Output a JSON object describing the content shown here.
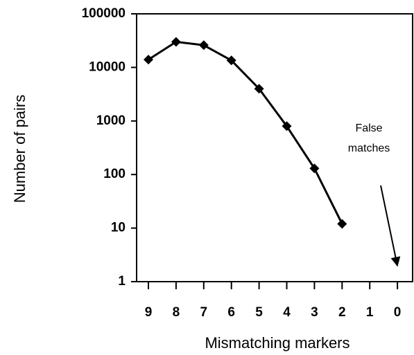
{
  "chart_data": {
    "type": "line",
    "x_label": "Mismatching markers",
    "y_label": "Number of pairs",
    "categories": [
      "9",
      "8",
      "7",
      "6",
      "5",
      "4",
      "3",
      "2",
      "1",
      "0"
    ],
    "series": [
      {
        "name": "pairs",
        "color": "#000000",
        "values": [
          14000,
          30000,
          26000,
          13500,
          4000,
          800,
          130,
          12,
          null,
          null
        ]
      }
    ],
    "ylim": [
      1,
      100000
    ],
    "yticks": [
      1,
      10,
      100,
      1000,
      10000,
      100000
    ],
    "log_y": true,
    "grid": false,
    "annotation": [
      "False",
      "matches"
    ]
  }
}
